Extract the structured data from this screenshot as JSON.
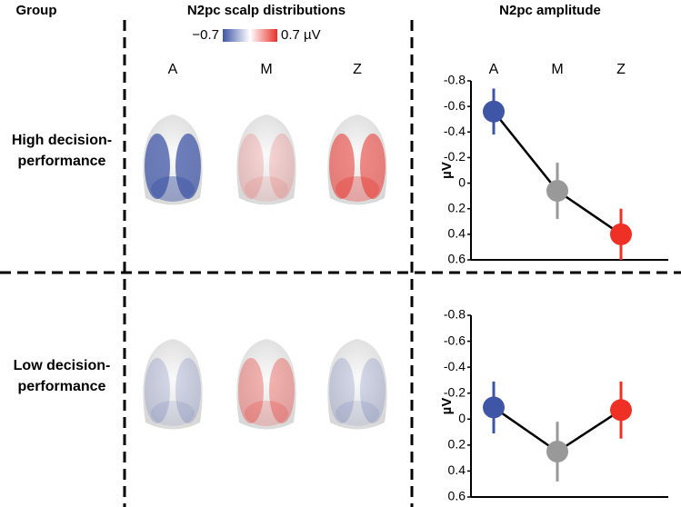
{
  "header": {
    "group": "Group",
    "scalp": "N2pc scalp distributions",
    "amplitude": "N2pc amplitude"
  },
  "colorbar": {
    "ticks": [
      {
        "value": -0.7,
        "label": "−0.7"
      },
      {
        "value": 0.7,
        "label": "0.7 µV"
      }
    ]
  },
  "scalp_labels": [
    "A",
    "M",
    "Z"
  ],
  "groups": [
    {
      "lines": [
        "High decision-",
        "performance"
      ]
    },
    {
      "lines": [
        "Low decision-",
        "performance"
      ]
    }
  ],
  "chart_data": [
    {
      "type": "line",
      "categories": [
        "A",
        "M",
        "Z"
      ],
      "ylabel": "µV",
      "ylim": [
        0.6,
        -0.8
      ],
      "yticks": [
        -0.8,
        -0.6,
        -0.4,
        -0.2,
        0,
        0.2,
        0.4,
        0.6
      ],
      "series": [
        {
          "color": "#000000",
          "values": [
            -0.56,
            0.06,
            0.4
          ],
          "errors": [
            0.18,
            0.22,
            0.2
          ],
          "point_colors": [
            "#3f55a6",
            "#999999",
            "#ee3124"
          ]
        }
      ]
    },
    {
      "type": "line",
      "categories": [
        null,
        null,
        null
      ],
      "ylabel": "µV",
      "ylim": [
        0.6,
        -0.8
      ],
      "yticks": [
        -0.8,
        -0.6,
        -0.4,
        -0.2,
        0,
        0.2,
        0.4,
        0.6
      ],
      "series": [
        {
          "color": "#000000",
          "values": [
            -0.09,
            0.25,
            -0.07
          ],
          "errors": [
            0.2,
            0.23,
            0.22
          ],
          "point_colors": [
            "#3f55a6",
            "#999999",
            "#ee3124"
          ]
        }
      ]
    }
  ]
}
